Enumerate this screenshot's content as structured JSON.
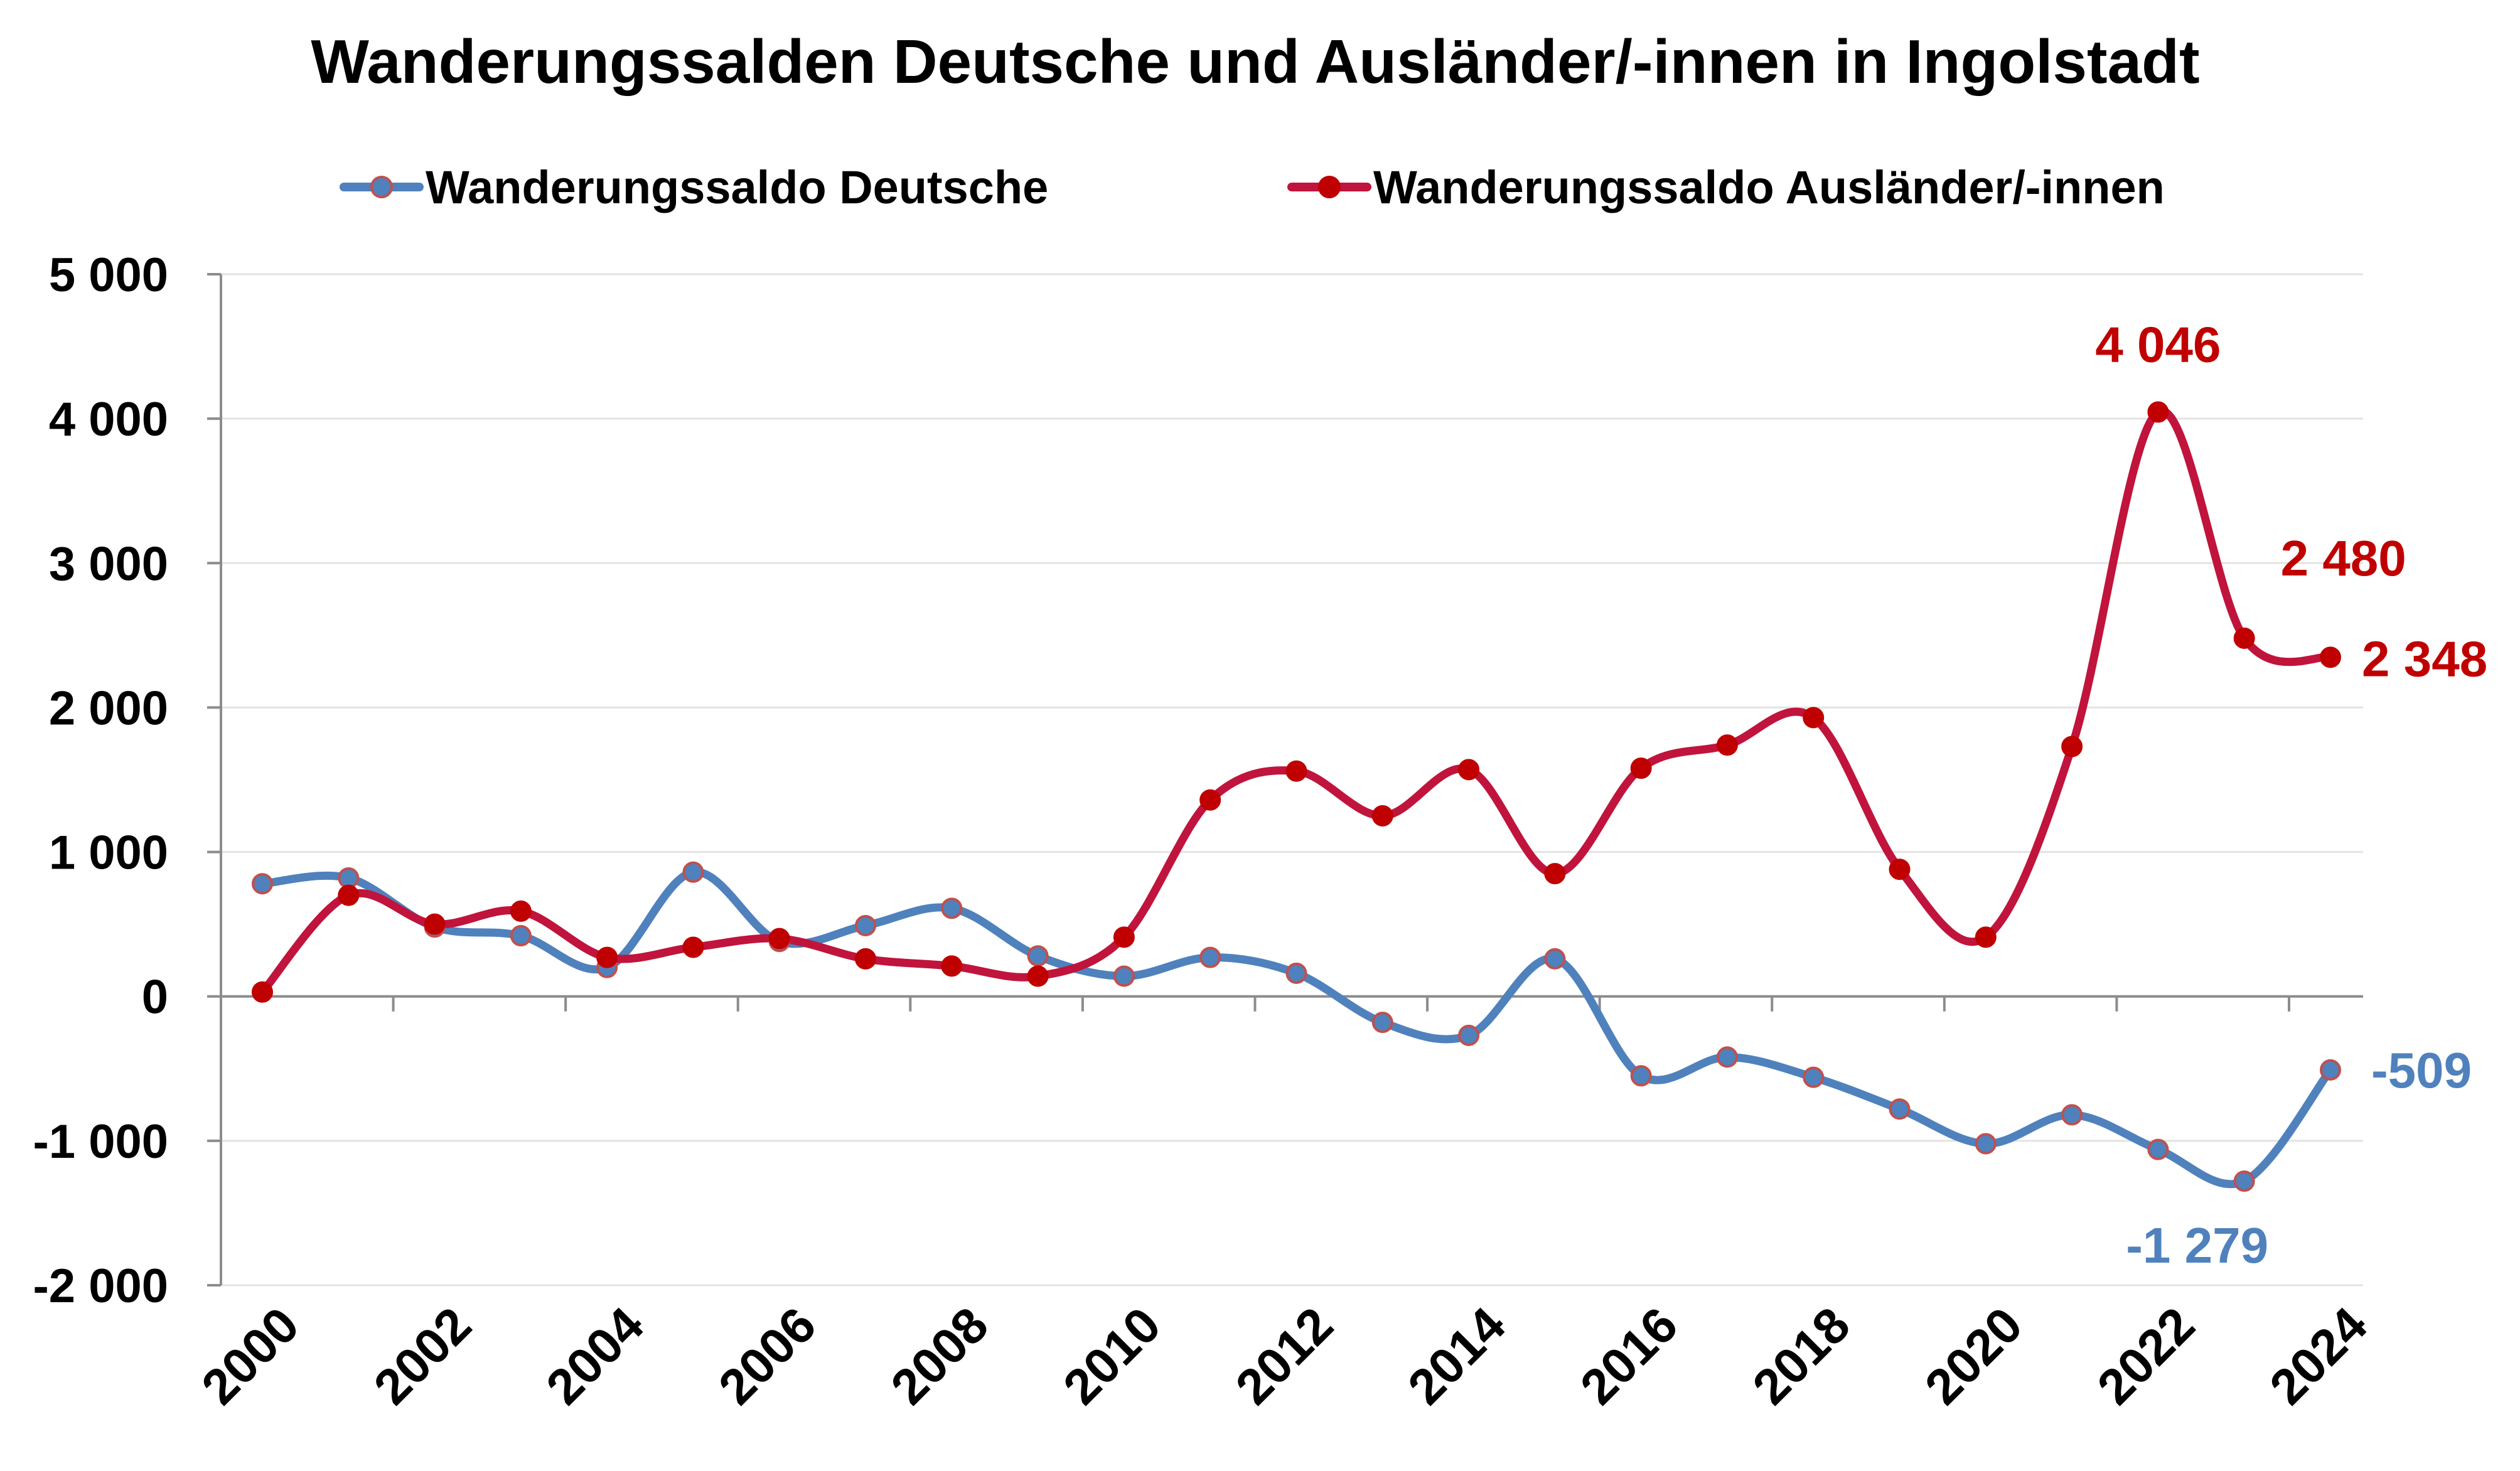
{
  "chart_data": {
    "type": "line",
    "title": "Wanderungssalden Deutsche und Ausländer/-innen in Ingolstadt",
    "xlabel": "",
    "ylabel": "",
    "x": [
      2000,
      2001,
      2002,
      2003,
      2004,
      2005,
      2006,
      2007,
      2008,
      2009,
      2010,
      2011,
      2012,
      2013,
      2014,
      2015,
      2016,
      2017,
      2018,
      2019,
      2020,
      2021,
      2022,
      2023,
      2024
    ],
    "x_tick_labels": [
      "2000",
      "2002",
      "2004",
      "2006",
      "2008",
      "2010",
      "2012",
      "2014",
      "2016",
      "2018",
      "2020",
      "2022",
      "2024"
    ],
    "ylim": [
      -2000,
      5000
    ],
    "y_ticks": [
      -2000,
      -1000,
      0,
      1000,
      2000,
      3000,
      4000,
      5000
    ],
    "y_tick_labels": [
      "-2 000",
      "-1 000",
      "0",
      "1 000",
      "2 000",
      "3 000",
      "4 000",
      "5 000"
    ],
    "grid": true,
    "legend_position": "top",
    "smooth": true,
    "series": [
      {
        "name": "Wanderungssaldo Deutsche",
        "color": "#4f81bd",
        "marker_fill": "#4f81bd",
        "marker_edge": "#c0504d",
        "values": [
          780,
          820,
          480,
          420,
          200,
          860,
          380,
          490,
          610,
          280,
          140,
          270,
          160,
          -180,
          -270,
          260,
          -550,
          -420,
          -560,
          -780,
          -1020,
          -820,
          -1060,
          -1279,
          -509
        ]
      },
      {
        "name": "Wanderungssaldo Ausländer/-innen",
        "color": "#c0143c",
        "marker_fill": "#c00000",
        "marker_edge": "#c00000",
        "values": [
          30,
          700,
          500,
          590,
          270,
          340,
          400,
          260,
          210,
          140,
          410,
          1360,
          1560,
          1250,
          1570,
          850,
          1580,
          1740,
          1930,
          880,
          410,
          1730,
          4046,
          2480,
          2348
        ]
      }
    ],
    "annotations": [
      {
        "series": 1,
        "index": 22,
        "text": "4 046",
        "color": "#c00000"
      },
      {
        "series": 1,
        "index": 23,
        "text": "2 480",
        "color": "#c00000"
      },
      {
        "series": 1,
        "index": 24,
        "text": "2 348",
        "color": "#c00000"
      },
      {
        "series": 0,
        "index": 23,
        "text": "-1 279",
        "color": "#4f81bd"
      },
      {
        "series": 0,
        "index": 24,
        "text": "-509",
        "color": "#4f81bd"
      }
    ]
  }
}
